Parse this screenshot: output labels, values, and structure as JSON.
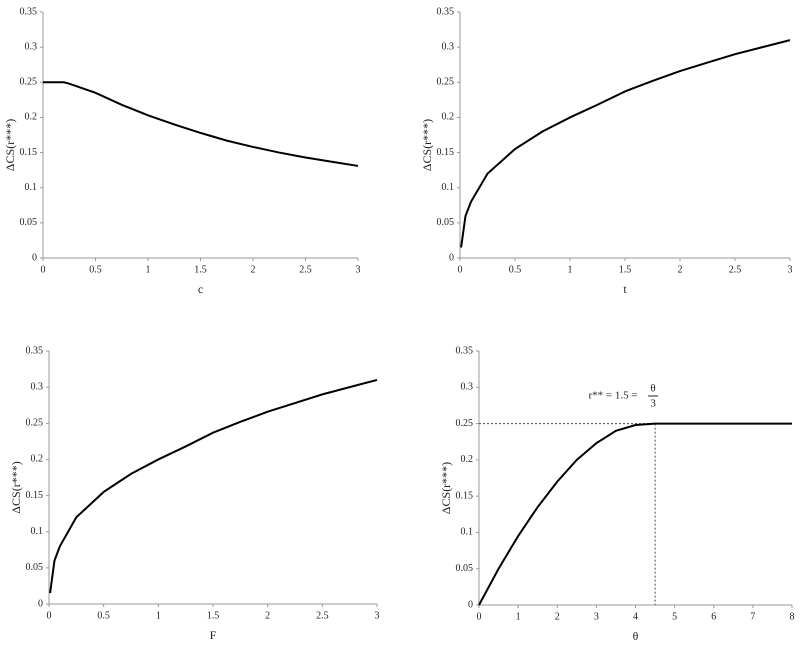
{
  "chart_data": [
    {
      "type": "line",
      "xlabel": "c",
      "ylabel": "ΔCS(r***)",
      "color": "#000000",
      "x": [
        0,
        0.1,
        0.2,
        0.25,
        0.5,
        0.75,
        1,
        1.25,
        1.5,
        1.75,
        2,
        2.25,
        2.5,
        2.75,
        3
      ],
      "values": [
        0.25,
        0.25,
        0.25,
        0.248,
        0.235,
        0.218,
        0.203,
        0.19,
        0.178,
        0.167,
        0.158,
        0.15,
        0.143,
        0.137,
        0.131
      ],
      "xlim": [
        0,
        3
      ],
      "ylim": [
        0,
        0.35
      ],
      "xticks": [
        0,
        0.5,
        1,
        1.5,
        2,
        2.5,
        3
      ],
      "yticks": [
        0,
        0.05,
        0.1,
        0.15,
        0.2,
        0.25,
        0.3,
        0.35
      ]
    },
    {
      "type": "line",
      "xlabel": "t",
      "ylabel": "ΔCS(r***)",
      "color": "#000000",
      "x": [
        0.01,
        0.05,
        0.1,
        0.25,
        0.5,
        0.75,
        1,
        1.25,
        1.5,
        1.75,
        2,
        2.25,
        2.5,
        2.75,
        3
      ],
      "values": [
        0.015,
        0.06,
        0.08,
        0.12,
        0.155,
        0.18,
        0.2,
        0.218,
        0.237,
        0.252,
        0.266,
        0.278,
        0.29,
        0.3,
        0.31
      ],
      "xlim": [
        0,
        3
      ],
      "ylim": [
        0,
        0.35
      ],
      "xticks": [
        0,
        0.5,
        1,
        1.5,
        2,
        2.5,
        3
      ],
      "yticks": [
        0,
        0.05,
        0.1,
        0.15,
        0.2,
        0.25,
        0.3,
        0.35
      ]
    },
    {
      "type": "line",
      "xlabel": "F",
      "ylabel": "ΔCS(r***)",
      "color": "#000000",
      "x": [
        0.01,
        0.05,
        0.1,
        0.25,
        0.5,
        0.75,
        1,
        1.25,
        1.5,
        1.75,
        2,
        2.25,
        2.5,
        2.75,
        3
      ],
      "values": [
        0.015,
        0.06,
        0.08,
        0.12,
        0.155,
        0.18,
        0.2,
        0.218,
        0.237,
        0.252,
        0.266,
        0.278,
        0.29,
        0.3,
        0.31
      ],
      "xlim": [
        0,
        3
      ],
      "ylim": [
        0,
        0.35
      ],
      "xticks": [
        0,
        0.5,
        1,
        1.5,
        2,
        2.5,
        3
      ],
      "yticks": [
        0,
        0.05,
        0.1,
        0.15,
        0.2,
        0.25,
        0.3,
        0.35
      ]
    },
    {
      "type": "line",
      "xlabel": "θ",
      "ylabel": "ΔCS(r***)",
      "color": "#000000",
      "x": [
        0,
        0.5,
        1,
        1.5,
        2,
        2.5,
        3,
        3.5,
        4,
        4.5,
        5,
        6,
        7,
        8
      ],
      "values": [
        0,
        0.05,
        0.095,
        0.135,
        0.17,
        0.2,
        0.223,
        0.24,
        0.248,
        0.25,
        0.25,
        0.25,
        0.25,
        0.25
      ],
      "xlim": [
        0,
        8
      ],
      "ylim": [
        0,
        0.35
      ],
      "xticks": [
        0,
        1,
        2,
        3,
        4,
        5,
        6,
        7,
        8
      ],
      "yticks": [
        0,
        0.05,
        0.1,
        0.15,
        0.2,
        0.25,
        0.3,
        0.35
      ],
      "ref_x": 4.5,
      "ref_y": 0.25,
      "annotation": {
        "text": "r** = 1.5 =",
        "numerator": "θ",
        "denominator": "3"
      }
    }
  ]
}
